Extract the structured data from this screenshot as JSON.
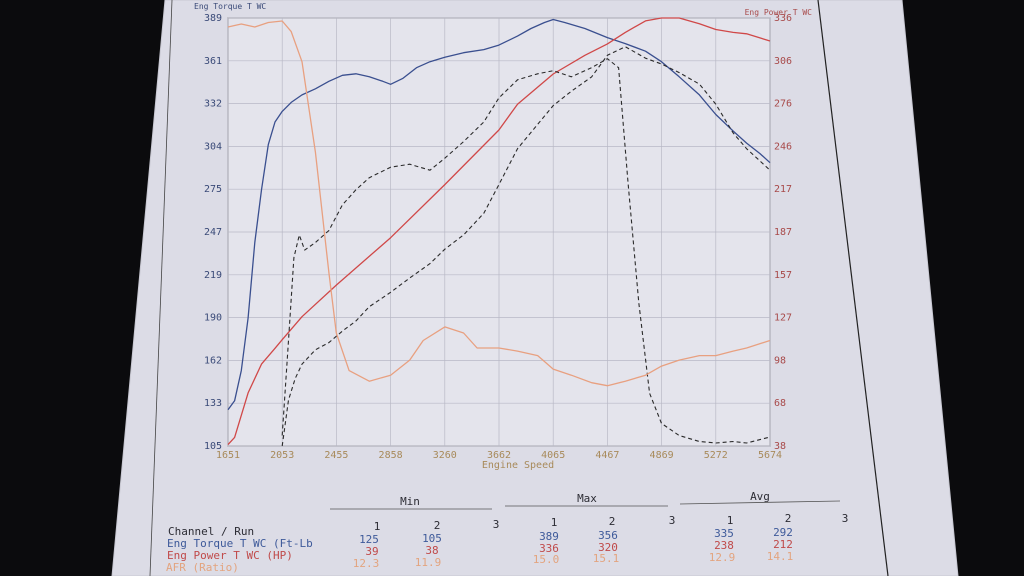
{
  "chart_data": {
    "type": "line",
    "xlabel": "Engine Speed",
    "ylabel_left": "Eng Torque T WC",
    "ylabel_right": "Eng Power T WC",
    "x_ticks": [
      "1651",
      "2053",
      "2455",
      "2858",
      "3260",
      "3662",
      "4065",
      "4467",
      "4869",
      "5272",
      "5674"
    ],
    "y_left_ticks": [
      "389",
      "361",
      "332",
      "304",
      "275",
      "247",
      "219",
      "190",
      "162",
      "133",
      "105"
    ],
    "y_right_ticks": [
      "336",
      "306",
      "276",
      "246",
      "217",
      "187",
      "157",
      "127",
      "98",
      "68",
      "38"
    ],
    "xlim": [
      1651,
      5674
    ],
    "ylim_left": [
      105,
      389
    ],
    "ylim_right": [
      38,
      336
    ],
    "grid": true,
    "colors": {
      "torque": "#3a4f8f",
      "power": "#d04848",
      "afr": "#e8a080",
      "run2": "#2a2a2a"
    },
    "series": [
      {
        "name": "Eng Torque T WC (Ft-Lb)",
        "axis": "left",
        "style": "solid",
        "color": "#3a4f8f",
        "x": [
          1651,
          1700,
          1750,
          1800,
          1850,
          1900,
          1950,
          2000,
          2053,
          2120,
          2200,
          2300,
          2400,
          2500,
          2600,
          2700,
          2800,
          2858,
          2950,
          3050,
          3150,
          3260,
          3400,
          3550,
          3662,
          3800,
          3900,
          4000,
          4065,
          4150,
          4300,
          4467,
          4600,
          4750,
          4869,
          5000,
          5150,
          5272,
          5400,
          5500,
          5600,
          5674
        ],
        "y": [
          129,
          135,
          155,
          190,
          240,
          275,
          305,
          320,
          327,
          333,
          338,
          342,
          347,
          351,
          352,
          350,
          347,
          345,
          349,
          356,
          360,
          363,
          366,
          368,
          371,
          377,
          382,
          386,
          388,
          386,
          382,
          376,
          372,
          367,
          360,
          350,
          338,
          325,
          314,
          306,
          299,
          293
        ]
      },
      {
        "name": "Eng Power T WC (HP) - Run 1",
        "axis": "right",
        "style": "solid",
        "color": "#d04848",
        "x": [
          1651,
          1700,
          1800,
          1900,
          2000,
          2053,
          2200,
          2455,
          2858,
          3260,
          3662,
          3800,
          4065,
          4300,
          4467,
          4600,
          4750,
          4869,
          5000,
          5150,
          5272,
          5400,
          5500,
          5674
        ],
        "y": [
          39,
          44,
          75,
          95,
          106,
          112,
          128,
          150,
          183,
          220,
          258,
          276,
          297,
          310,
          318,
          326,
          334,
          336,
          336,
          332,
          328,
          326,
          325,
          320
        ]
      },
      {
        "name": "Eng Power T WC (HP) - Run 2",
        "axis": "right",
        "style": "dashed",
        "color": "#2a2a2a",
        "x": [
          2053,
          2100,
          2150,
          2200,
          2300,
          2400,
          2500,
          2600,
          2700,
          2858,
          3000,
          3150,
          3260,
          3400,
          3550,
          3662,
          3800,
          3950,
          4065,
          4200,
          4350,
          4467,
          4600,
          4750,
          4869,
          5000,
          5150,
          5272,
          5400,
          5500,
          5674
        ],
        "y": [
          38,
          70,
          85,
          95,
          105,
          110,
          118,
          125,
          135,
          145,
          155,
          165,
          175,
          185,
          200,
          220,
          245,
          262,
          275,
          285,
          295,
          310,
          316,
          308,
          304,
          298,
          290,
          276,
          256,
          245,
          230
        ]
      },
      {
        "name": "Eng Torque T WC - Run 2",
        "axis": "left",
        "style": "dashed",
        "color": "#2a2a2a",
        "x": [
          2053,
          2100,
          2140,
          2180,
          2220,
          2300,
          2400,
          2500,
          2600,
          2700,
          2858,
          3000,
          3150,
          3260,
          3400,
          3550,
          3662,
          3800,
          3950,
          4065,
          4200,
          4350,
          4467,
          4550,
          4620,
          4700,
          4780,
          4869,
          5000,
          5150,
          5272,
          5400,
          5500,
          5674
        ],
        "y": [
          112,
          175,
          230,
          245,
          235,
          240,
          248,
          265,
          275,
          283,
          290,
          292,
          288,
          296,
          307,
          320,
          336,
          348,
          352,
          354,
          350,
          356,
          362,
          356,
          280,
          200,
          140,
          120,
          112,
          108,
          107,
          108,
          107,
          111
        ]
      },
      {
        "name": "AFR (Ratio)",
        "axis": "left",
        "style": "solid",
        "color": "#e8a080",
        "x": [
          1651,
          1750,
          1850,
          1950,
          2053,
          2120,
          2200,
          2300,
          2400,
          2455,
          2550,
          2700,
          2858,
          3000,
          3100,
          3260,
          3400,
          3500,
          3662,
          3800,
          3950,
          4065,
          4200,
          4350,
          4467,
          4600,
          4750,
          4869,
          5000,
          5150,
          5272,
          5400,
          5500,
          5674
        ],
        "y": [
          383,
          385,
          383,
          386,
          387,
          380,
          360,
          300,
          220,
          180,
          155,
          148,
          152,
          162,
          175,
          184,
          180,
          170,
          170,
          168,
          165,
          156,
          152,
          147,
          145,
          148,
          152,
          158,
          162,
          165,
          165,
          168,
          170,
          175
        ]
      }
    ]
  },
  "table": {
    "groups": [
      "Min",
      "Max",
      "Avg"
    ],
    "header_label": "Channel / Run",
    "run_numbers": [
      "1",
      "2",
      "3"
    ],
    "rows": [
      {
        "label": "Eng Torque T WC (Ft-Lb",
        "min": [
          "125",
          "105"
        ],
        "max": [
          "389",
          "356"
        ],
        "avg": [
          "335",
          "292"
        ]
      },
      {
        "label": "Eng Power T WC (HP)",
        "min": [
          "39",
          "38"
        ],
        "max": [
          "336",
          "320"
        ],
        "avg": [
          "238",
          "212"
        ]
      },
      {
        "label": "AFR (Ratio)",
        "min": [
          "12.3",
          "11.9"
        ],
        "max": [
          "15.0",
          "15.1"
        ],
        "avg": [
          "12.9",
          "14.1"
        ]
      }
    ]
  }
}
